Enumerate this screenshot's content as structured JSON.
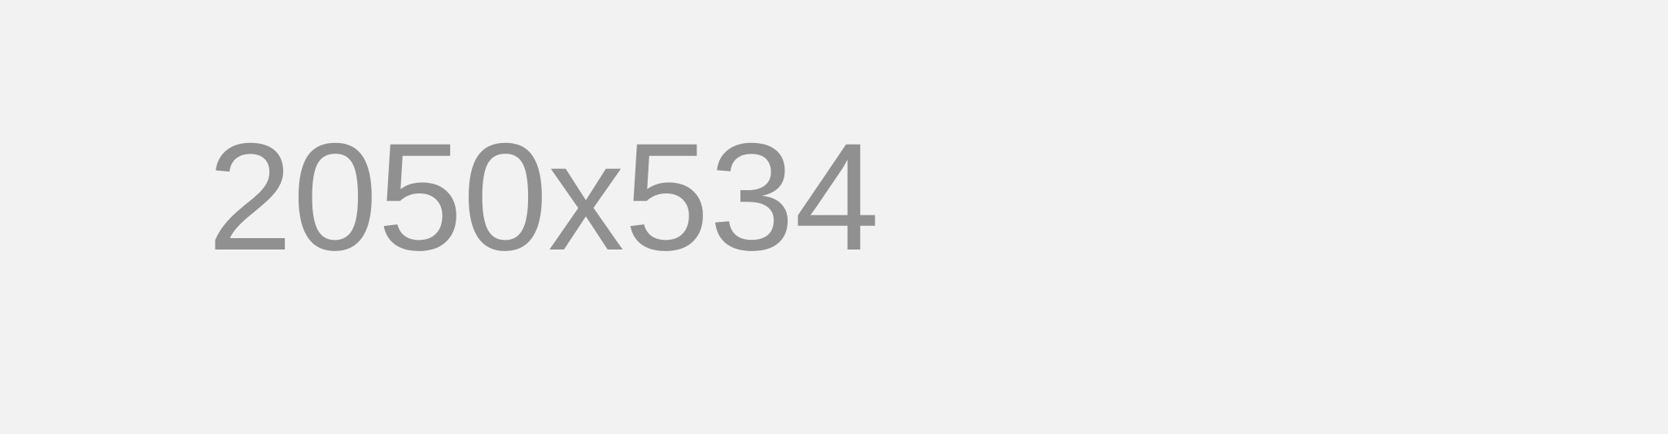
{
  "placeholder": {
    "text": "2050x534",
    "background_color": "#f2f2f2",
    "text_color": "#909090"
  }
}
